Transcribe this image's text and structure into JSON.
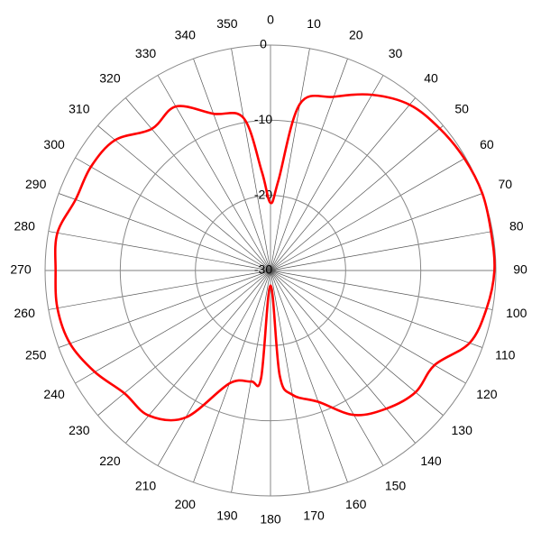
{
  "chart_data": {
    "type": "polar",
    "theta": [
      0,
      5,
      10,
      20,
      30,
      40,
      50,
      60,
      70,
      80,
      90,
      100,
      110,
      120,
      130,
      140,
      150,
      160,
      170,
      175,
      180,
      185,
      190,
      200,
      210,
      220,
      230,
      240,
      250,
      260,
      270,
      280,
      290,
      300,
      310,
      320,
      330,
      340,
      350,
      355
    ],
    "values": [
      -21,
      -18,
      -7.5,
      -5.4,
      -3,
      -1.2,
      -0.6,
      -0.2,
      0,
      -0.2,
      -0.2,
      -0.8,
      -1.8,
      -4.8,
      -4.8,
      -6,
      -7.8,
      -11.4,
      -13.2,
      -16,
      -28,
      -15.6,
      -15,
      -14,
      -7.4,
      -4.8,
      -4.6,
      -3,
      -1.6,
      -1.2,
      -1.4,
      -1.2,
      -2.4,
      -2.4,
      -3,
      -5.4,
      -4.8,
      -7.8,
      -9.4,
      -16.8
    ],
    "color": "#ff0000",
    "rlim": [
      -30,
      0
    ],
    "rticks": [
      -30,
      -20,
      -10,
      0
    ],
    "thetaticks": [
      0,
      10,
      20,
      30,
      40,
      50,
      60,
      70,
      80,
      90,
      100,
      110,
      120,
      130,
      140,
      150,
      160,
      170,
      180,
      190,
      200,
      210,
      220,
      230,
      240,
      250,
      260,
      270,
      280,
      290,
      300,
      310,
      320,
      330,
      340,
      350
    ],
    "grid": true
  }
}
